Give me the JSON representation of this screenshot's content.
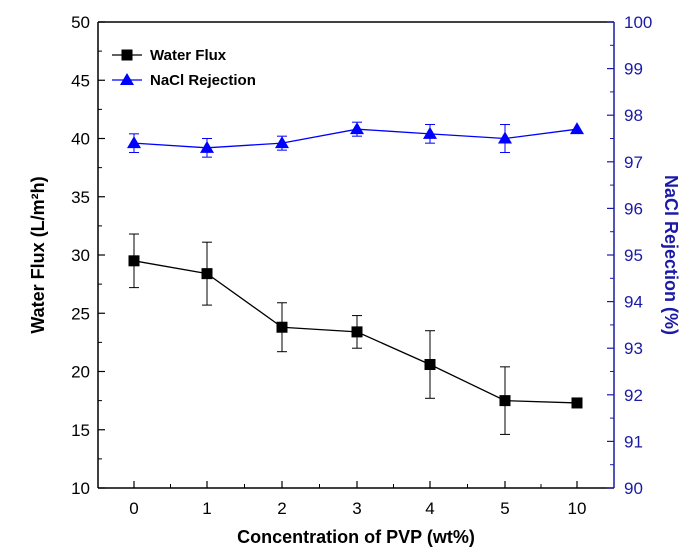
{
  "chart_data": {
    "type": "line",
    "categories": [
      "0",
      "1",
      "2",
      "3",
      "4",
      "5",
      "10"
    ],
    "xlabel": "Concentration of PVP (wt%)",
    "ylabel_left": "Water Flux (L/m²h)",
    "ylabel_right": "NaCl Rejection (%)",
    "ylim_left": [
      10,
      50
    ],
    "ylim_right": [
      90,
      100
    ],
    "yticks_left": [
      10,
      15,
      20,
      25,
      30,
      35,
      40,
      45,
      50
    ],
    "yticks_right": [
      90,
      91,
      92,
      93,
      94,
      95,
      96,
      97,
      98,
      99,
      100
    ],
    "legend_position": "top-left",
    "grid": false,
    "series": [
      {
        "name": "Water Flux",
        "axis": "left",
        "marker": "square",
        "color": "#000000",
        "values": [
          29.5,
          28.4,
          23.8,
          23.4,
          20.6,
          17.5,
          17.3
        ],
        "errors": [
          2.3,
          2.7,
          2.1,
          1.4,
          2.9,
          2.9,
          0
        ]
      },
      {
        "name": "NaCl Rejection",
        "axis": "right",
        "marker": "triangle",
        "color": "#0000ff",
        "values": [
          97.4,
          97.3,
          97.4,
          97.7,
          97.6,
          97.5,
          97.7
        ],
        "errors": [
          0.2,
          0.2,
          0.15,
          0.15,
          0.2,
          0.3,
          0
        ]
      }
    ]
  }
}
